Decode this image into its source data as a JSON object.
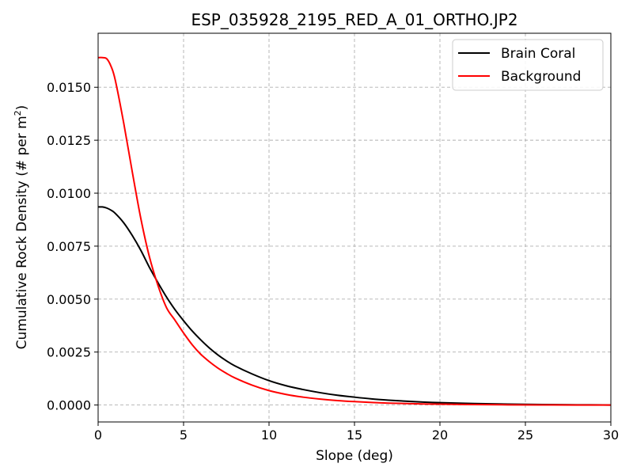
{
  "chart_data": {
    "type": "line",
    "title": "ESP_035928_2195_RED_A_01_ORTHO.JP2",
    "xlabel": "Slope (deg)",
    "ylabel_main": "Cumulative Rock Density (# per m",
    "ylabel_sup": "2",
    "ylabel_end": ")",
    "xlim": [
      0,
      30
    ],
    "ylim": [
      -0.0008,
      0.01755
    ],
    "xticks": [
      0,
      5,
      10,
      15,
      20,
      25,
      30
    ],
    "xtick_labels": [
      "0",
      "5",
      "10",
      "15",
      "20",
      "25",
      "30"
    ],
    "yticks": [
      0.0,
      0.0025,
      0.005,
      0.0075,
      0.01,
      0.0125,
      0.015
    ],
    "ytick_labels": [
      "0.0000",
      "0.0025",
      "0.0050",
      "0.0075",
      "0.0100",
      "0.0125",
      "0.0150"
    ],
    "grid": true,
    "legend_position": "top-right",
    "series": [
      {
        "name": "Brain Coral",
        "color": "#000000",
        "x": [
          0,
          0.25,
          0.5,
          0.75,
          1,
          1.5,
          2,
          2.5,
          3,
          3.5,
          4,
          4.5,
          5,
          5.5,
          6,
          6.5,
          7,
          7.5,
          8,
          9,
          10,
          11,
          12,
          13,
          14,
          15,
          16,
          17,
          18,
          19,
          20,
          22,
          24,
          26,
          28,
          30
        ],
        "y": [
          0.00935,
          0.00935,
          0.0093,
          0.0092,
          0.00905,
          0.0086,
          0.008,
          0.0073,
          0.0065,
          0.00578,
          0.0051,
          0.0045,
          0.00398,
          0.0035,
          0.00308,
          0.0027,
          0.00237,
          0.00209,
          0.00185,
          0.00147,
          0.00115,
          0.00091,
          0.00073,
          0.00058,
          0.00046,
          0.00037,
          0.00029,
          0.00023,
          0.00018,
          0.00014,
          0.00011,
          7e-05,
          4e-05,
          2e-05,
          1e-05,
          0.0
        ]
      },
      {
        "name": "Background",
        "color": "#ff0000",
        "x": [
          0,
          0.25,
          0.5,
          0.75,
          1,
          1.5,
          2,
          2.5,
          3,
          3.5,
          4,
          4.5,
          5,
          5.5,
          6,
          6.5,
          7,
          7.5,
          8,
          9,
          10,
          11,
          12,
          13,
          14,
          15,
          16,
          17,
          18,
          19,
          20,
          22,
          24,
          26,
          28,
          30
        ],
        "y": [
          0.0164,
          0.0164,
          0.01635,
          0.016,
          0.01535,
          0.0133,
          0.011,
          0.0088,
          0.007,
          0.00565,
          0.0046,
          0.004,
          0.0034,
          0.00285,
          0.0024,
          0.00205,
          0.00175,
          0.0015,
          0.00128,
          0.00094,
          0.00068,
          0.0005,
          0.00037,
          0.00028,
          0.00021,
          0.00016,
          0.00012,
          9e-05,
          7e-05,
          5e-05,
          4e-05,
          2e-05,
          1e-05,
          5e-06,
          0.0,
          0.0
        ]
      }
    ]
  }
}
